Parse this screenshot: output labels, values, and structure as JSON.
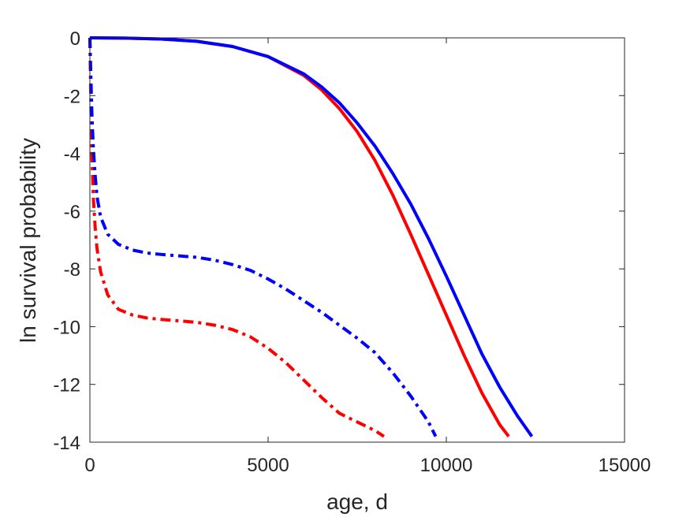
{
  "chart_data": {
    "type": "line",
    "title": "",
    "xlabel": "age, d",
    "ylabel": "ln survival probability",
    "xlim": [
      0,
      15000
    ],
    "ylim": [
      -14,
      0
    ],
    "xticks": [
      0,
      5000,
      10000,
      15000
    ],
    "xtick_labels": [
      "0",
      "5000",
      "10000",
      "15000"
    ],
    "yticks": [
      0,
      -2,
      -4,
      -6,
      -8,
      -10,
      -12,
      -14
    ],
    "ytick_labels": [
      "0",
      "-2",
      "-4",
      "-6",
      "-8",
      "-10",
      "-12",
      "-14"
    ],
    "grid": false,
    "legend": "none",
    "series": [
      {
        "color": "#ff0000",
        "line_style": "solid",
        "x": [
          0,
          1000,
          2000,
          3000,
          4000,
          5000,
          6000,
          6500,
          7000,
          7500,
          8000,
          8500,
          9000,
          9500,
          10000,
          10500,
          11000,
          11500,
          11750
        ],
        "y": [
          0,
          -0.01,
          -0.04,
          -0.12,
          -0.3,
          -0.65,
          -1.3,
          -1.8,
          -2.45,
          -3.25,
          -4.25,
          -5.45,
          -6.8,
          -8.2,
          -9.6,
          -11.0,
          -12.3,
          -13.4,
          -13.8
        ]
      },
      {
        "color": "#0000ff",
        "line_style": "solid",
        "x": [
          0,
          1000,
          2000,
          3000,
          4000,
          5000,
          6000,
          6500,
          7000,
          7500,
          8000,
          8500,
          9000,
          9500,
          10000,
          10500,
          11000,
          11500,
          12000,
          12400
        ],
        "y": [
          0,
          -0.01,
          -0.04,
          -0.12,
          -0.3,
          -0.65,
          -1.25,
          -1.7,
          -2.25,
          -2.95,
          -3.75,
          -4.7,
          -5.75,
          -6.95,
          -8.25,
          -9.6,
          -10.95,
          -12.1,
          -13.1,
          -13.8
        ]
      },
      {
        "color": "#ff0000",
        "line_style": "dash-dot",
        "x": [
          0,
          30,
          60,
          100,
          150,
          200,
          300,
          500,
          800,
          1200,
          1600,
          2000,
          2500,
          3000,
          3500,
          4000,
          4500,
          5000,
          5500,
          6000,
          6500,
          7000,
          7500,
          8000,
          8250
        ],
        "y": [
          0,
          -2.5,
          -4.2,
          -5.6,
          -6.6,
          -7.3,
          -8.1,
          -8.9,
          -9.4,
          -9.6,
          -9.7,
          -9.75,
          -9.8,
          -9.85,
          -9.95,
          -10.1,
          -10.35,
          -10.75,
          -11.25,
          -11.85,
          -12.45,
          -13.0,
          -13.3,
          -13.6,
          -13.8
        ]
      },
      {
        "color": "#0000ff",
        "line_style": "dash-dot",
        "x": [
          0,
          30,
          60,
          100,
          150,
          200,
          300,
          500,
          800,
          1200,
          1600,
          2000,
          2500,
          3000,
          3500,
          4000,
          4500,
          5000,
          5500,
          6000,
          6500,
          7000,
          7500,
          8000,
          8500,
          9000,
          9500,
          9700
        ],
        "y": [
          0,
          -1.5,
          -2.8,
          -3.9,
          -4.8,
          -5.5,
          -6.2,
          -6.8,
          -7.15,
          -7.35,
          -7.45,
          -7.5,
          -7.55,
          -7.6,
          -7.7,
          -7.85,
          -8.05,
          -8.35,
          -8.7,
          -9.1,
          -9.5,
          -9.95,
          -10.4,
          -10.9,
          -11.6,
          -12.4,
          -13.3,
          -13.8
        ]
      }
    ]
  }
}
